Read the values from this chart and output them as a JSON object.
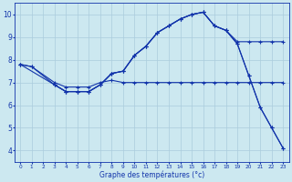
{
  "xlabel": "Graphe des températures (°c)",
  "bg_color": "#cce8f0",
  "grid_color": "#aaccdd",
  "line_color": "#1133aa",
  "xlim": [
    -0.5,
    23.5
  ],
  "ylim": [
    3.5,
    10.5
  ],
  "yticks": [
    4,
    5,
    6,
    7,
    8,
    9,
    10
  ],
  "xticks": [
    0,
    1,
    2,
    3,
    4,
    5,
    6,
    7,
    8,
    9,
    10,
    11,
    12,
    13,
    14,
    15,
    16,
    17,
    18,
    19,
    20,
    21,
    22,
    23
  ],
  "line1_x": [
    0,
    1,
    3,
    4,
    5,
    6,
    7,
    8,
    9,
    10,
    11,
    12,
    13,
    14,
    15,
    16,
    17,
    18,
    19,
    20,
    21,
    22,
    23
  ],
  "line1_y": [
    7.8,
    7.7,
    7.0,
    6.8,
    6.8,
    6.8,
    7.0,
    7.1,
    7.0,
    7.0,
    7.0,
    7.0,
    7.0,
    7.0,
    7.0,
    7.0,
    7.0,
    7.0,
    7.0,
    7.0,
    7.0,
    7.0,
    7.0
  ],
  "line2_x": [
    0,
    1,
    3,
    4,
    5,
    6,
    7,
    8,
    9,
    10,
    11,
    12,
    13,
    14,
    15,
    16,
    17,
    18,
    19,
    20,
    21,
    22,
    23
  ],
  "line2_y": [
    7.8,
    7.7,
    6.9,
    6.6,
    6.6,
    6.6,
    6.9,
    7.4,
    7.5,
    8.2,
    8.6,
    9.2,
    9.5,
    9.8,
    10.0,
    10.1,
    9.5,
    9.3,
    8.8,
    8.8,
    8.8,
    8.8,
    8.8
  ],
  "line3_x": [
    0,
    3,
    4,
    5,
    6,
    7,
    8,
    9,
    10,
    11,
    12,
    13,
    14,
    15,
    16,
    17,
    18,
    19,
    20,
    21,
    22,
    23
  ],
  "line3_y": [
    7.8,
    6.9,
    6.6,
    6.6,
    6.6,
    6.9,
    7.4,
    7.5,
    8.2,
    8.6,
    9.2,
    9.5,
    9.8,
    10.0,
    10.1,
    9.5,
    9.3,
    8.7,
    7.3,
    5.9,
    5.0,
    4.1
  ],
  "line4_x": [
    3,
    4,
    5,
    6,
    7,
    8,
    9,
    10,
    11,
    12,
    13,
    14,
    15,
    16,
    17,
    18,
    19,
    20,
    21,
    22,
    23
  ],
  "line4_y": [
    6.9,
    6.6,
    6.6,
    6.6,
    6.9,
    7.4,
    7.5,
    8.2,
    8.6,
    9.2,
    9.5,
    9.8,
    10.0,
    10.1,
    9.5,
    9.3,
    8.7,
    7.3,
    5.9,
    5.0,
    4.1
  ]
}
